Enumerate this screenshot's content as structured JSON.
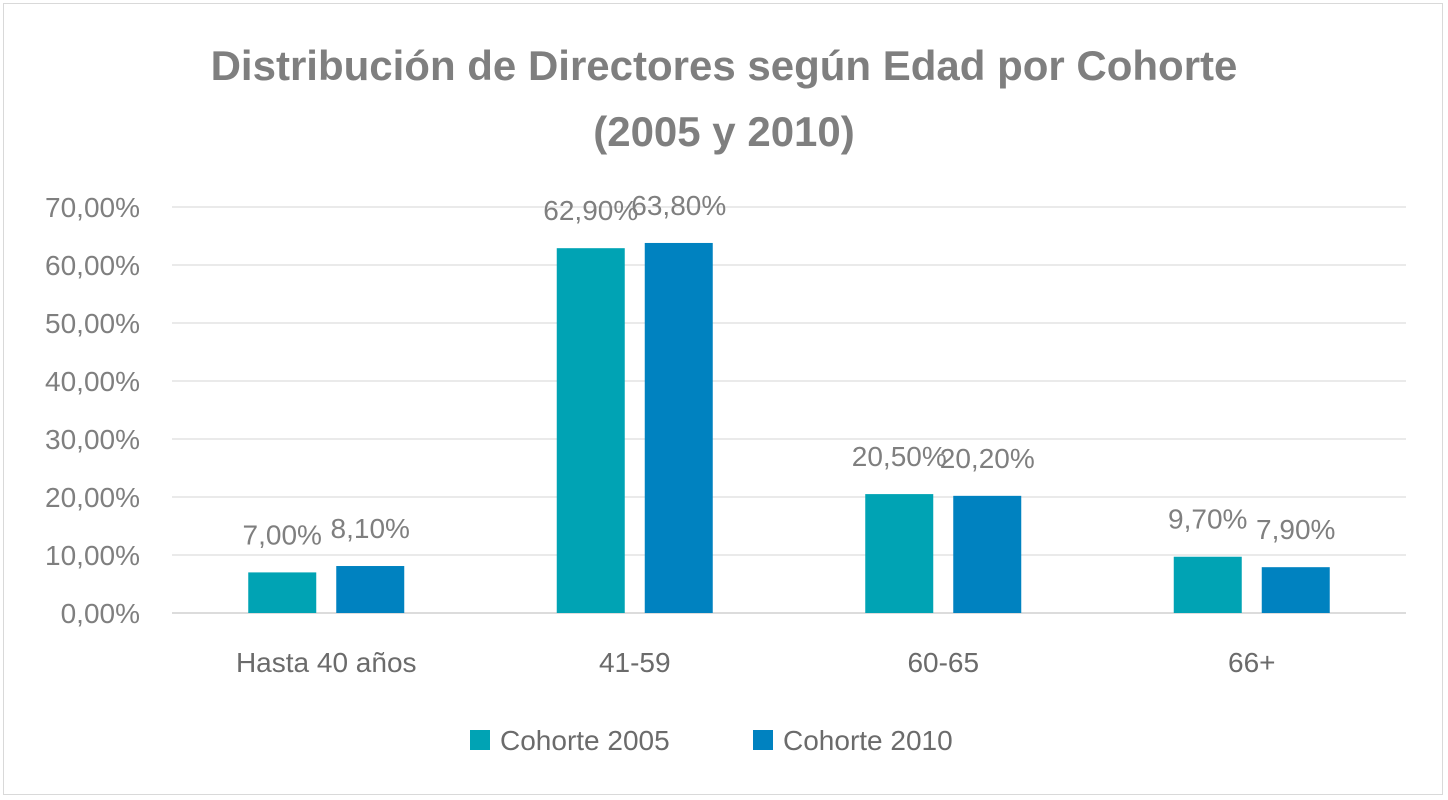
{
  "chart_data": {
    "type": "bar",
    "title": "Distribución de Directores según Edad por Cohorte (2005 y 2010)",
    "title_lines": [
      "Distribución de Directores según Edad por Cohorte",
      "(2005 y 2010)"
    ],
    "categories": [
      "Hasta 40 años",
      "41-59",
      "60-65",
      "66+"
    ],
    "series": [
      {
        "name": "Cohorte 2005",
        "color": "#00a3b4",
        "values": [
          7.0,
          62.9,
          20.5,
          9.7
        ],
        "labels": [
          "7,00%",
          "62,90%",
          "20,50%",
          "9,70%"
        ]
      },
      {
        "name": "Cohorte 2010",
        "color": "#0082c0",
        "values": [
          8.1,
          63.8,
          20.2,
          7.9
        ],
        "labels": [
          "8,10%",
          "63,80%",
          "20,20%",
          "7,90%"
        ]
      }
    ],
    "ylim": [
      0,
      70
    ],
    "yticks": [
      0,
      10,
      20,
      30,
      40,
      50,
      60,
      70
    ],
    "ytick_labels": [
      "0,00%",
      "10,00%",
      "20,00%",
      "30,00%",
      "40,00%",
      "50,00%",
      "60,00%",
      "70,00%"
    ],
    "xlabel": "",
    "ylabel": "",
    "grid": true,
    "legend_position": "bottom"
  }
}
